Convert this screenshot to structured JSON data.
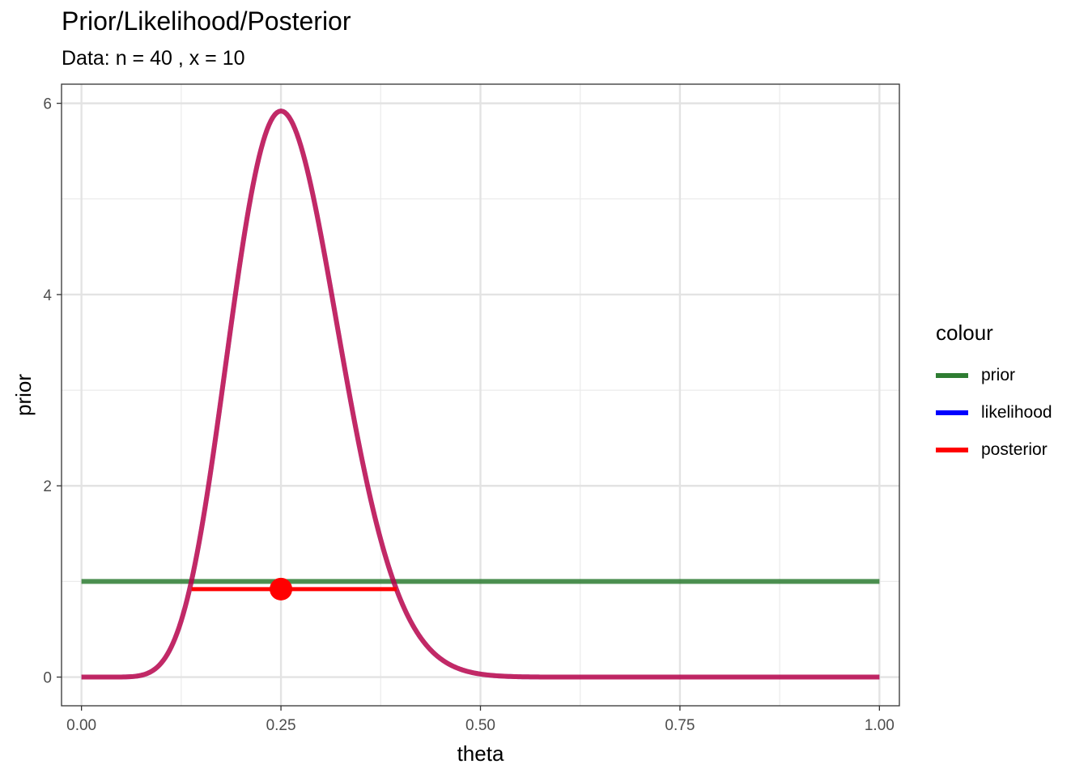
{
  "chart_data": {
    "type": "line",
    "title": "Prior/Likelihood/Posterior",
    "subtitle": "Data: n = 40 , x = 10",
    "xlabel": "theta",
    "ylabel": "prior",
    "xlim": [
      -0.025,
      1.025
    ],
    "ylim": [
      -0.3,
      6.2
    ],
    "x_ticks": [
      0,
      0.25,
      0.5,
      0.75,
      1
    ],
    "x_tick_labels": [
      "0.00",
      "0.25",
      "0.50",
      "0.75",
      "1.00"
    ],
    "y_ticks": [
      0,
      2,
      4,
      6
    ],
    "y_tick_labels": [
      "0",
      "2",
      "4",
      "6"
    ],
    "grid": true,
    "legend": {
      "title": "colour",
      "position": "right",
      "entries": [
        {
          "label": "prior",
          "color": "#2e7d32"
        },
        {
          "label": "likelihood",
          "color": "#0000ff"
        },
        {
          "label": "posterior",
          "color": "#ff0000"
        }
      ]
    },
    "series": [
      {
        "name": "prior",
        "distribution": "uniform",
        "value": 1,
        "x_range": [
          0,
          1
        ],
        "color": "#2e7d32"
      },
      {
        "name": "likelihood",
        "distribution": "beta",
        "alpha": 11,
        "beta": 31,
        "x_range": [
          0,
          1
        ],
        "color": "#0000ff"
      },
      {
        "name": "posterior",
        "distribution": "beta",
        "alpha": 11,
        "beta": 31,
        "x_range": [
          0,
          1
        ],
        "color": "#ff0000"
      }
    ],
    "posterior_interval": {
      "lower": 0.138,
      "upper": 0.395,
      "y": 0.92,
      "point": 0.25,
      "color": "#ff0000"
    }
  }
}
